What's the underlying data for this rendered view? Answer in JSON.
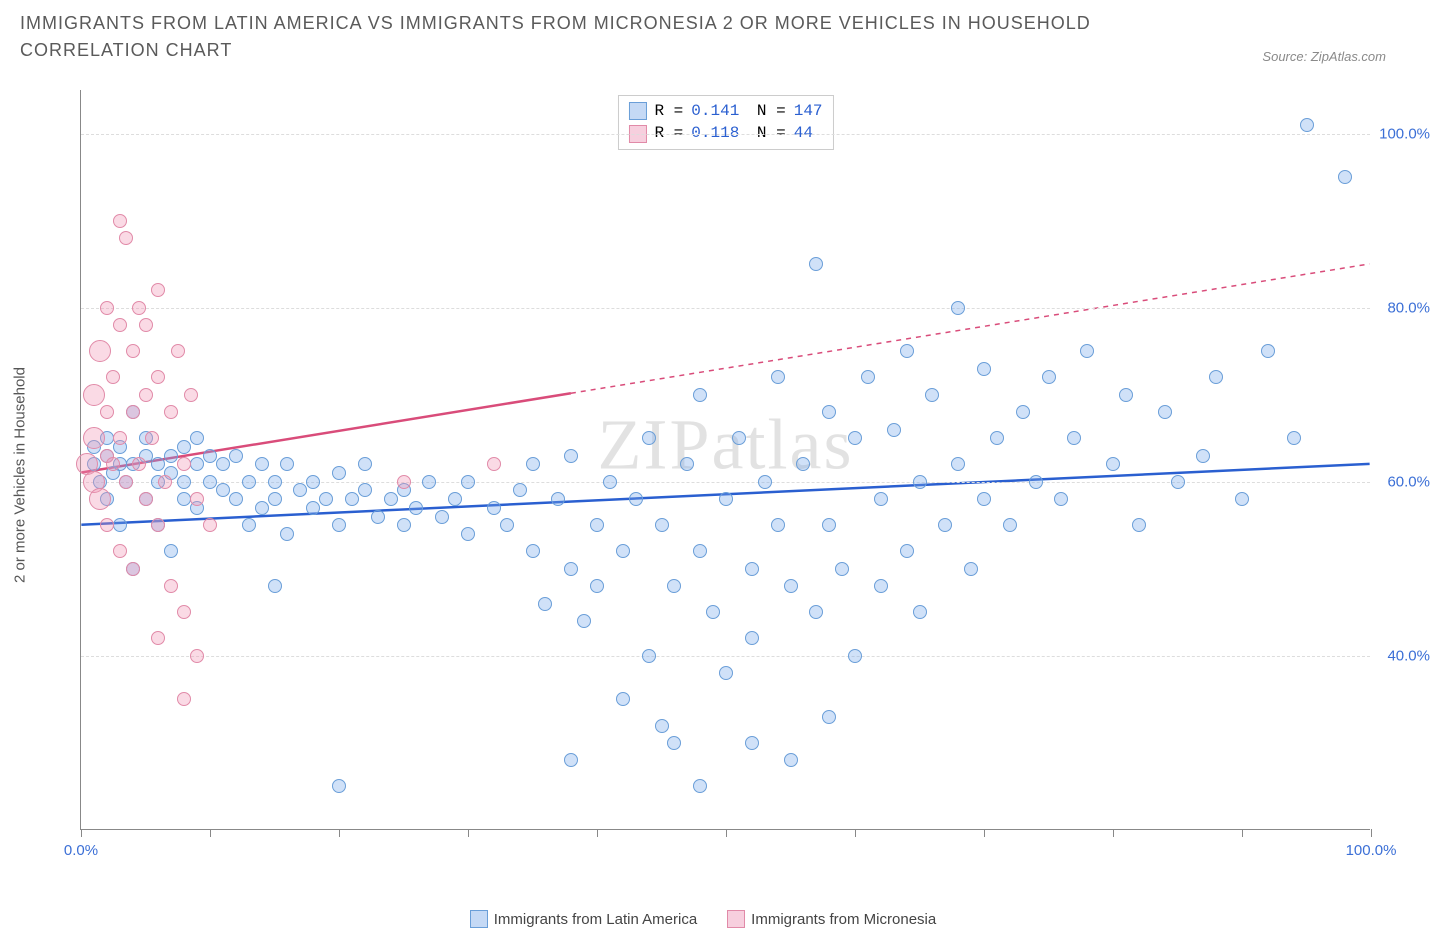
{
  "title": "IMMIGRANTS FROM LATIN AMERICA VS IMMIGRANTS FROM MICRONESIA 2 OR MORE VEHICLES IN HOUSEHOLD CORRELATION CHART",
  "source_label": "Source:",
  "source_value": "ZipAtlas.com",
  "watermark": "ZIPatlas",
  "ylabel": "2 or more Vehicles in Household",
  "chart": {
    "type": "scatter",
    "xlim": [
      0,
      100
    ],
    "ylim": [
      20,
      105
    ],
    "x_ticks": [
      0,
      10,
      20,
      30,
      40,
      50,
      60,
      70,
      80,
      90,
      100
    ],
    "x_tick_labels": {
      "0": "0.0%",
      "100": "100.0%"
    },
    "y_gridlines": [
      40,
      60,
      80,
      100
    ],
    "y_tick_labels": {
      "40": "40.0%",
      "60": "60.0%",
      "80": "80.0%",
      "100": "100.0%"
    },
    "background_color": "#ffffff",
    "grid_color": "#dddddd",
    "axis_color": "#888888",
    "point_radius": 7,
    "point_radius_large": 11,
    "series": [
      {
        "name": "Immigrants from Latin America",
        "fill": "rgba(120,170,235,0.35)",
        "stroke": "#6a9ed8",
        "trend_color": "#2a5fd0",
        "trend_width": 2.5,
        "trend": {
          "x1": 0,
          "y1": 55,
          "x2": 100,
          "y2": 62
        },
        "trend_dash_after_x": null,
        "R": "0.141",
        "N": "147",
        "points": [
          [
            1,
            62
          ],
          [
            1,
            64
          ],
          [
            1.5,
            60
          ],
          [
            2,
            63
          ],
          [
            2,
            65
          ],
          [
            2,
            58
          ],
          [
            2.5,
            61
          ],
          [
            3,
            64
          ],
          [
            3,
            62
          ],
          [
            3,
            55
          ],
          [
            3.5,
            60
          ],
          [
            4,
            62
          ],
          [
            4,
            68
          ],
          [
            4,
            50
          ],
          [
            5,
            63
          ],
          [
            5,
            58
          ],
          [
            5,
            65
          ],
          [
            6,
            62
          ],
          [
            6,
            55
          ],
          [
            6,
            60
          ],
          [
            7,
            61
          ],
          [
            7,
            63
          ],
          [
            7,
            52
          ],
          [
            8,
            60
          ],
          [
            8,
            64
          ],
          [
            8,
            58
          ],
          [
            9,
            62
          ],
          [
            9,
            57
          ],
          [
            9,
            65
          ],
          [
            10,
            60
          ],
          [
            10,
            63
          ],
          [
            11,
            59
          ],
          [
            11,
            62
          ],
          [
            12,
            58
          ],
          [
            12,
            63
          ],
          [
            13,
            60
          ],
          [
            13,
            55
          ],
          [
            14,
            62
          ],
          [
            14,
            57
          ],
          [
            15,
            60
          ],
          [
            15,
            58
          ],
          [
            16,
            62
          ],
          [
            16,
            54
          ],
          [
            17,
            59
          ],
          [
            18,
            60
          ],
          [
            18,
            57
          ],
          [
            19,
            58
          ],
          [
            20,
            61
          ],
          [
            20,
            55
          ],
          [
            21,
            58
          ],
          [
            22,
            59
          ],
          [
            22,
            62
          ],
          [
            23,
            56
          ],
          [
            24,
            58
          ],
          [
            25,
            59
          ],
          [
            25,
            55
          ],
          [
            26,
            57
          ],
          [
            27,
            60
          ],
          [
            28,
            56
          ],
          [
            29,
            58
          ],
          [
            30,
            54
          ],
          [
            30,
            60
          ],
          [
            32,
            57
          ],
          [
            33,
            55
          ],
          [
            34,
            59
          ],
          [
            35,
            52
          ],
          [
            35,
            62
          ],
          [
            36,
            46
          ],
          [
            37,
            58
          ],
          [
            38,
            50
          ],
          [
            38,
            63
          ],
          [
            39,
            44
          ],
          [
            40,
            55
          ],
          [
            40,
            48
          ],
          [
            41,
            60
          ],
          [
            42,
            52
          ],
          [
            42,
            35
          ],
          [
            43,
            58
          ],
          [
            44,
            65
          ],
          [
            44,
            40
          ],
          [
            45,
            55
          ],
          [
            46,
            48
          ],
          [
            46,
            30
          ],
          [
            47,
            62
          ],
          [
            48,
            52
          ],
          [
            48,
            70
          ],
          [
            49,
            45
          ],
          [
            50,
            58
          ],
          [
            50,
            38
          ],
          [
            51,
            65
          ],
          [
            52,
            50
          ],
          [
            52,
            42
          ],
          [
            53,
            60
          ],
          [
            54,
            55
          ],
          [
            54,
            72
          ],
          [
            55,
            48
          ],
          [
            55,
            28
          ],
          [
            56,
            62
          ],
          [
            57,
            85
          ],
          [
            57,
            45
          ],
          [
            58,
            68
          ],
          [
            58,
            55
          ],
          [
            59,
            50
          ],
          [
            60,
            65
          ],
          [
            60,
            40
          ],
          [
            61,
            72
          ],
          [
            62,
            58
          ],
          [
            62,
            48
          ],
          [
            63,
            66
          ],
          [
            64,
            52
          ],
          [
            64,
            75
          ],
          [
            65,
            60
          ],
          [
            65,
            45
          ],
          [
            66,
            70
          ],
          [
            67,
            55
          ],
          [
            68,
            80
          ],
          [
            68,
            62
          ],
          [
            69,
            50
          ],
          [
            70,
            73
          ],
          [
            70,
            58
          ],
          [
            71,
            65
          ],
          [
            72,
            55
          ],
          [
            73,
            68
          ],
          [
            74,
            60
          ],
          [
            75,
            72
          ],
          [
            76,
            58
          ],
          [
            77,
            65
          ],
          [
            78,
            75
          ],
          [
            80,
            62
          ],
          [
            81,
            70
          ],
          [
            82,
            55
          ],
          [
            84,
            68
          ],
          [
            85,
            60
          ],
          [
            87,
            63
          ],
          [
            88,
            72
          ],
          [
            90,
            58
          ],
          [
            92,
            75
          ],
          [
            94,
            65
          ],
          [
            95,
            101
          ],
          [
            98,
            95
          ],
          [
            20,
            25
          ],
          [
            38,
            28
          ],
          [
            45,
            32
          ],
          [
            52,
            30
          ],
          [
            58,
            33
          ],
          [
            48,
            25
          ],
          [
            15,
            48
          ]
        ]
      },
      {
        "name": "Immigrants from Micronesia",
        "fill": "rgba(240,150,180,0.35)",
        "stroke": "#e18aa8",
        "trend_color": "#d94c7a",
        "trend_width": 2.5,
        "trend": {
          "x1": 0,
          "y1": 61,
          "x2": 100,
          "y2": 85
        },
        "trend_dash_after_x": 38,
        "R": "0.118",
        "N": " 44",
        "points": [
          [
            0.5,
            62
          ],
          [
            1,
            65
          ],
          [
            1,
            60
          ],
          [
            1,
            70
          ],
          [
            1.5,
            58
          ],
          [
            1.5,
            75
          ],
          [
            2,
            63
          ],
          [
            2,
            68
          ],
          [
            2,
            55
          ],
          [
            2,
            80
          ],
          [
            2.5,
            62
          ],
          [
            2.5,
            72
          ],
          [
            3,
            65
          ],
          [
            3,
            78
          ],
          [
            3,
            52
          ],
          [
            3.5,
            60
          ],
          [
            3.5,
            88
          ],
          [
            4,
            68
          ],
          [
            4,
            75
          ],
          [
            4,
            50
          ],
          [
            4.5,
            80
          ],
          [
            4.5,
            62
          ],
          [
            5,
            70
          ],
          [
            5,
            58
          ],
          [
            5,
            78
          ],
          [
            5.5,
            65
          ],
          [
            6,
            72
          ],
          [
            6,
            55
          ],
          [
            6,
            82
          ],
          [
            6.5,
            60
          ],
          [
            7,
            68
          ],
          [
            7,
            48
          ],
          [
            7.5,
            75
          ],
          [
            8,
            62
          ],
          [
            8,
            45
          ],
          [
            8.5,
            70
          ],
          [
            9,
            58
          ],
          [
            9,
            40
          ],
          [
            3,
            90
          ],
          [
            10,
            55
          ],
          [
            8,
            35
          ],
          [
            6,
            42
          ],
          [
            25,
            60
          ],
          [
            32,
            62
          ]
        ]
      }
    ]
  },
  "legend": {
    "series1_label": "Immigrants from Latin America",
    "series2_label": "Immigrants from Micronesia"
  },
  "colors": {
    "blue_swatch_fill": "rgba(140,180,235,0.5)",
    "blue_swatch_border": "#6a9ed8",
    "pink_swatch_fill": "rgba(240,160,190,0.5)",
    "pink_swatch_border": "#e18aa8",
    "stat_value": "#2a5fd0",
    "title_color": "#5a5a5a",
    "tick_label_color": "#3b6fd6"
  }
}
